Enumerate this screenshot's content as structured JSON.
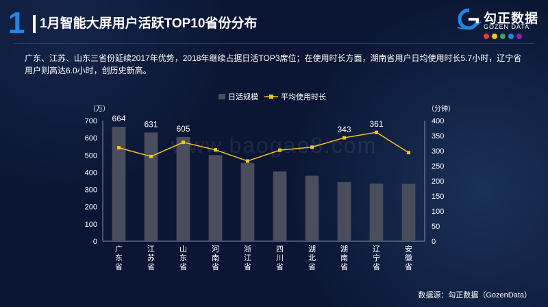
{
  "header": {
    "page_number": "1",
    "title": "1月智能大屏用户活跃TOP10省份分布",
    "logo": {
      "name": "勾正数据",
      "sub": "GOZEN DATA",
      "dot_colors": [
        "#e53935",
        "#fbc02d",
        "#43a047",
        "#1e88e5",
        "#8e24aa"
      ]
    }
  },
  "description": "广东、江苏、山东三省份延续2017年优势，2018年继续占据日活TOP3席位；在使用时长方面，湖南省用户日均使用时长5.7小时，辽宁省用户则高达6.0小时，创历史新高。",
  "watermark": "www.baogao8.com",
  "source": "数据源：勾正数据（GozenData）",
  "chart_data": {
    "type": "bar",
    "categories": [
      "广东省",
      "江苏省",
      "山东省",
      "河南省",
      "浙江省",
      "四川省",
      "湖北省",
      "湖南省",
      "辽宁省",
      "安徽省"
    ],
    "series": [
      {
        "name": "日活规模",
        "type": "bar",
        "axis": "left",
        "color": "#4a4d5c",
        "values": [
          664,
          631,
          605,
          500,
          455,
          405,
          380,
          343,
          335,
          333
        ]
      },
      {
        "name": "平均使用时长",
        "type": "line",
        "axis": "right",
        "color": "#f5c518",
        "values": [
          310,
          281,
          328,
          303,
          266,
          302,
          312,
          343,
          361,
          294
        ]
      }
    ],
    "data_labels": [
      {
        "series": 0,
        "index": 0,
        "text": "664"
      },
      {
        "series": 0,
        "index": 1,
        "text": "631"
      },
      {
        "series": 0,
        "index": 2,
        "text": "605"
      },
      {
        "series": 1,
        "index": 7,
        "text": "343"
      },
      {
        "series": 1,
        "index": 8,
        "text": "361"
      }
    ],
    "y_left": {
      "unit": "（万）",
      "min": 0,
      "max": 700,
      "step": 100
    },
    "y_right": {
      "unit": "（分钟）",
      "min": 0,
      "max": 400,
      "step": 50
    },
    "legend": {
      "position": "top-center"
    },
    "grid": false
  }
}
